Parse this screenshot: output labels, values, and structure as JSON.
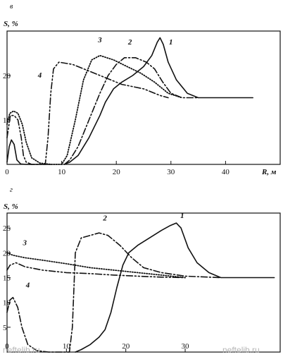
{
  "chart_data": [
    {
      "type": "line",
      "panel_label": "в",
      "ylabel": "S, %",
      "xlabel": "R, м",
      "xlim": [
        0,
        50
      ],
      "ylim": [
        0,
        30
      ],
      "x_ticks": [
        0,
        10,
        20,
        30,
        40
      ],
      "y_ticks": [
        10,
        20
      ],
      "series": [
        {
          "name": "1",
          "style": "solid",
          "x": [
            10.5,
            11.5,
            13,
            15,
            17,
            18,
            19.5,
            21,
            23,
            25,
            26.5,
            27.5,
            28,
            28.6,
            29.5,
            31,
            33,
            35,
            37,
            45
          ],
          "y": [
            0,
            0.5,
            2,
            6,
            11,
            14,
            17,
            18.5,
            20,
            22,
            24.5,
            27.5,
            28.5,
            27,
            23,
            19,
            16,
            15,
            15,
            15
          ]
        },
        {
          "name": "2",
          "style": "dashdot",
          "x": [
            10.5,
            11.5,
            13,
            15,
            17,
            18.5,
            20,
            21.5,
            23.5,
            25.5,
            27,
            28.5,
            30,
            32,
            35
          ],
          "y": [
            0,
            1,
            4,
            10,
            16,
            20,
            22.5,
            24,
            24,
            23,
            21.5,
            18.5,
            16,
            15,
            15
          ]
        },
        {
          "name": "3",
          "style": "dotted",
          "x": [
            0,
            0.5,
            1.2,
            2,
            2.8,
            3.5,
            4.5,
            6,
            8,
            10,
            11,
            12.5,
            14,
            15.5,
            17,
            19.5,
            22,
            24.5,
            27,
            29.5,
            32
          ],
          "y": [
            9,
            11.5,
            12,
            11.5,
            9,
            5,
            1.5,
            0.3,
            0,
            0,
            2,
            10,
            19,
            23.5,
            24.5,
            23.5,
            22,
            20.5,
            18.5,
            16,
            15
          ]
        },
        {
          "name": "4",
          "style": "dashdotdot",
          "x": [
            0,
            0.6,
            1.3,
            2,
            2.6,
            3,
            3.5,
            4.5,
            6,
            7,
            7.5,
            8,
            8.5,
            9.5,
            12,
            15,
            18,
            21,
            25,
            28,
            29.5
          ],
          "y": [
            6,
            11,
            11,
            10,
            6,
            2,
            0.5,
            0,
            0,
            0,
            6,
            16,
            21.5,
            23,
            22.5,
            21,
            19.5,
            18,
            17,
            15.5,
            15
          ]
        },
        {
          "name": "",
          "style": "solid",
          "x": [
            0,
            0.4,
            0.8,
            1.3,
            1.8,
            2.5,
            3.5,
            5,
            6.5,
            8
          ],
          "y": [
            0.5,
            4,
            5.5,
            4.5,
            1,
            0.1,
            0,
            0,
            0,
            0
          ]
        }
      ],
      "curve_labels": [
        {
          "text": "1",
          "x": 30,
          "y": 27
        },
        {
          "text": "2",
          "x": 22.5,
          "y": 27
        },
        {
          "text": "3",
          "x": 17,
          "y": 27.5
        },
        {
          "text": "4",
          "x": 6,
          "y": 19.5
        }
      ]
    },
    {
      "type": "line",
      "panel_label": "г",
      "ylabel": "S, %",
      "xlabel": "",
      "xlim": [
        0,
        46
      ],
      "ylim": [
        0,
        28
      ],
      "x_ticks": [
        0,
        10,
        20,
        30
      ],
      "y_ticks": [
        5,
        10,
        15,
        20,
        25
      ],
      "series": [
        {
          "name": "1",
          "style": "solid",
          "x": [
            11.5,
            12.5,
            14,
            15.5,
            16.5,
            17.5,
            18.5,
            19.5,
            20.5,
            22,
            24,
            26,
            27.5,
            28.5,
            29.3,
            30.5,
            32,
            34,
            36,
            38,
            45
          ],
          "y": [
            0,
            0.5,
            1.5,
            3,
            4.5,
            8,
            13,
            17.5,
            20,
            21.5,
            23,
            24.5,
            25.5,
            26,
            25,
            21,
            18,
            16,
            15,
            15,
            15
          ]
        },
        {
          "name": "2",
          "style": "dashdot",
          "x": [
            0,
            0.5,
            1,
            1.8,
            2.5,
            3.5,
            5,
            7,
            9,
            10.5,
            11,
            11.5,
            12.5,
            14,
            15.5,
            17,
            19,
            21,
            23,
            26,
            30,
            36
          ],
          "y": [
            8,
            10.5,
            11,
            9,
            5,
            1.5,
            0.3,
            0,
            0,
            0,
            5,
            20,
            23,
            23.5,
            24,
            23.5,
            21.5,
            19,
            17,
            16,
            15.3,
            15
          ]
        },
        {
          "name": "3",
          "style": "dotted",
          "x": [
            0,
            1,
            3,
            6,
            10,
            14,
            18,
            22,
            26,
            30
          ],
          "y": [
            20,
            19.5,
            19,
            18.5,
            17.8,
            17,
            16.5,
            16,
            15.5,
            15
          ]
        },
        {
          "name": "4",
          "style": "dashdotdot",
          "x": [
            0,
            0.5,
            1.5,
            3,
            6,
            10,
            14,
            18,
            22,
            26,
            30
          ],
          "y": [
            16.5,
            17.5,
            18,
            17.2,
            16.5,
            16,
            15.8,
            15.5,
            15.3,
            15.1,
            15
          ]
        }
      ],
      "curve_labels": [
        {
          "text": "1",
          "x": 29.5,
          "y": 27
        },
        {
          "text": "2",
          "x": 16.5,
          "y": 26.5
        },
        {
          "text": "3",
          "x": 3,
          "y": 21.5
        },
        {
          "text": "4",
          "x": 3.5,
          "y": 13
        }
      ]
    }
  ],
  "watermarks": [
    "neftelib.ru",
    "neftelib.ru"
  ]
}
